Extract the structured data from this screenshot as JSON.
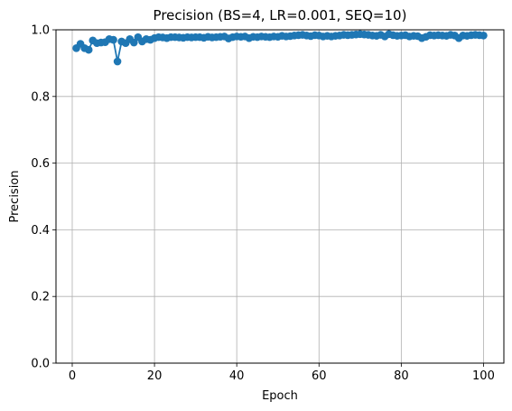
{
  "chart_data": {
    "type": "line",
    "title": "Precision (BS=4, LR=0.001, SEQ=10)",
    "xlabel": "Epoch",
    "ylabel": "Precision",
    "xlim": [
      -3.95,
      104.95
    ],
    "ylim": [
      0.0,
      1.0
    ],
    "xticks": [
      0,
      20,
      40,
      60,
      80,
      100
    ],
    "xtick_labels": [
      "0",
      "20",
      "40",
      "60",
      "80",
      "100"
    ],
    "yticks": [
      0.0,
      0.2,
      0.4,
      0.6,
      0.8,
      1.0
    ],
    "ytick_labels": [
      "0.0",
      "0.2",
      "0.4",
      "0.6",
      "0.8",
      "1.0"
    ],
    "grid": true,
    "marker": "circle",
    "series": [
      {
        "color": "#1f77b4",
        "x": [
          1,
          2,
          3,
          4,
          5,
          6,
          7,
          8,
          9,
          10,
          11,
          12,
          13,
          14,
          15,
          16,
          17,
          18,
          19,
          20,
          21,
          22,
          23,
          24,
          25,
          26,
          27,
          28,
          29,
          30,
          31,
          32,
          33,
          34,
          35,
          36,
          37,
          38,
          39,
          40,
          41,
          42,
          43,
          44,
          45,
          46,
          47,
          48,
          49,
          50,
          51,
          52,
          53,
          54,
          55,
          56,
          57,
          58,
          59,
          60,
          61,
          62,
          63,
          64,
          65,
          66,
          67,
          68,
          69,
          70,
          71,
          72,
          73,
          74,
          75,
          76,
          77,
          78,
          79,
          80,
          81,
          82,
          83,
          84,
          85,
          86,
          87,
          88,
          89,
          90,
          91,
          92,
          93,
          94,
          95,
          96,
          97,
          98,
          99,
          100
        ],
        "values": [
          0.945,
          0.958,
          0.945,
          0.94,
          0.968,
          0.96,
          0.962,
          0.963,
          0.972,
          0.97,
          0.905,
          0.965,
          0.96,
          0.972,
          0.962,
          0.978,
          0.965,
          0.972,
          0.97,
          0.975,
          0.978,
          0.977,
          0.975,
          0.978,
          0.978,
          0.977,
          0.976,
          0.978,
          0.977,
          0.978,
          0.978,
          0.976,
          0.979,
          0.977,
          0.978,
          0.979,
          0.98,
          0.974,
          0.978,
          0.98,
          0.979,
          0.98,
          0.975,
          0.979,
          0.978,
          0.98,
          0.979,
          0.978,
          0.98,
          0.979,
          0.982,
          0.98,
          0.981,
          0.983,
          0.984,
          0.985,
          0.983,
          0.981,
          0.984,
          0.983,
          0.98,
          0.982,
          0.98,
          0.982,
          0.983,
          0.985,
          0.984,
          0.985,
          0.986,
          0.987,
          0.986,
          0.985,
          0.983,
          0.982,
          0.985,
          0.98,
          0.987,
          0.984,
          0.982,
          0.983,
          0.984,
          0.98,
          0.982,
          0.981,
          0.975,
          0.979,
          0.984,
          0.983,
          0.984,
          0.983,
          0.982,
          0.985,
          0.983,
          0.975,
          0.983,
          0.982,
          0.984,
          0.985,
          0.984,
          0.983
        ]
      }
    ]
  }
}
